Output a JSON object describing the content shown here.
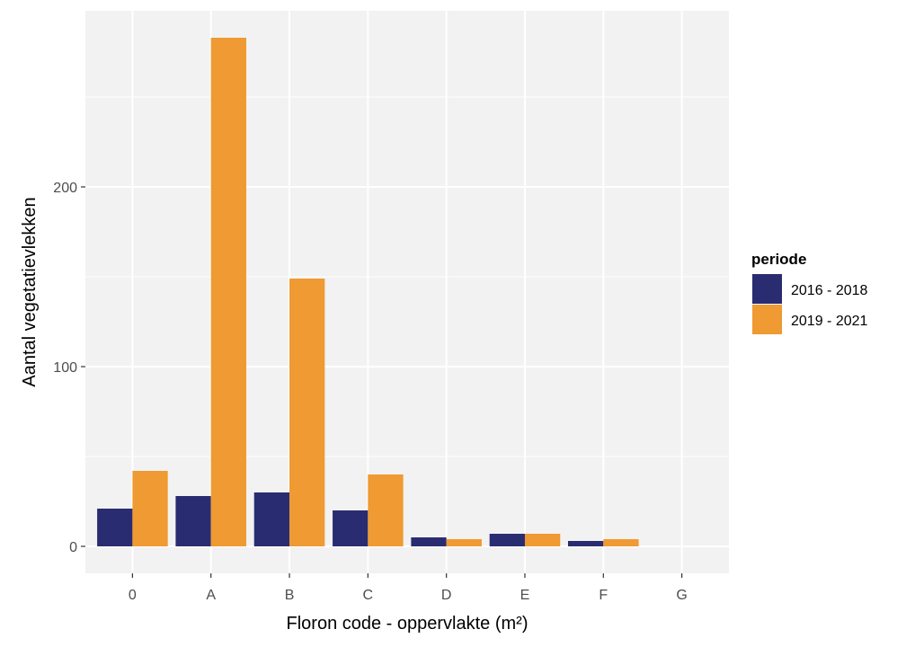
{
  "chart_data": {
    "type": "bar",
    "xlabel": "Floron code - oppervlakte (m²)",
    "ylabel": "Aantal vegetatievlekken",
    "categories": [
      "0",
      "A",
      "B",
      "C",
      "D",
      "E",
      "F",
      "G"
    ],
    "series": [
      {
        "name": "2016 - 2018",
        "color": "#2a2c71",
        "values": [
          21,
          28,
          30,
          20,
          5,
          7,
          3,
          0
        ]
      },
      {
        "name": "2019 - 2021",
        "color": "#ef9a32",
        "values": [
          42,
          283,
          149,
          40,
          4,
          7,
          4,
          0
        ]
      }
    ],
    "yticks": [
      0,
      100,
      200
    ],
    "ylim": [
      -15,
      298
    ],
    "grid": true,
    "panel_background": "#f2f2f2",
    "legend": {
      "title": "periode",
      "position": "right"
    }
  }
}
